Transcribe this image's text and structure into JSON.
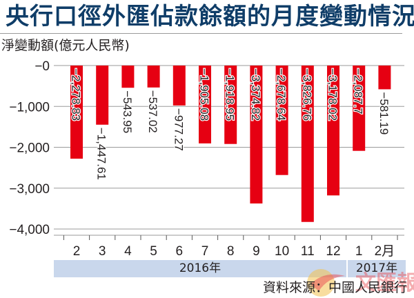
{
  "header": {
    "title": "央行口徑外匯佔款餘額的月度變動情況",
    "unit_label": "淨變動額(億元人民幣)"
  },
  "footer": {
    "source": "資料來源：中國人民銀行",
    "year_bands": [
      {
        "label": "2016年"
      },
      {
        "label": "2017年"
      }
    ],
    "watermark": "文匯報"
  },
  "colors": {
    "bar": "#e60012",
    "title": "#0f3d68",
    "band": "#c9d7ec",
    "grid": "#9a9a9a"
  },
  "chart_data": {
    "type": "bar",
    "title": "央行口徑外匯佔款餘額的月度變動情況",
    "xlabel": "",
    "ylabel": "淨變動額(億元人民幣)",
    "ylim": [
      -4000,
      0
    ],
    "yticks": [
      "-0",
      "-1,000",
      "-2,000",
      "-3,000",
      "-4,000"
    ],
    "grid": true,
    "categories": [
      "2",
      "3",
      "4",
      "5",
      "6",
      "7",
      "8",
      "9",
      "10",
      "11",
      "12",
      "1",
      "2月"
    ],
    "category_years": [
      "2016年",
      "2016年",
      "2016年",
      "2016年",
      "2016年",
      "2016年",
      "2016年",
      "2016年",
      "2016年",
      "2016年",
      "2016年",
      "2017年",
      "2017年"
    ],
    "values": [
      -2278.83,
      -1447.61,
      -543.95,
      -537.02,
      -977.27,
      -1905.08,
      -1918.95,
      -3374.82,
      -2678.64,
      -3826.76,
      -3178.02,
      -2087.7,
      -581.19
    ],
    "data_labels": [
      "−2,278.83",
      "−1,447.61",
      "−543.95",
      "−537.02",
      "−977.27",
      "−1,905.08",
      "−1,918.95",
      "−3,374.82",
      "−2,678.64",
      "−3,826.76",
      "−3,178.02",
      "−2,087.7",
      "−581.19"
    ],
    "source": "資料來源：中國人民銀行"
  }
}
